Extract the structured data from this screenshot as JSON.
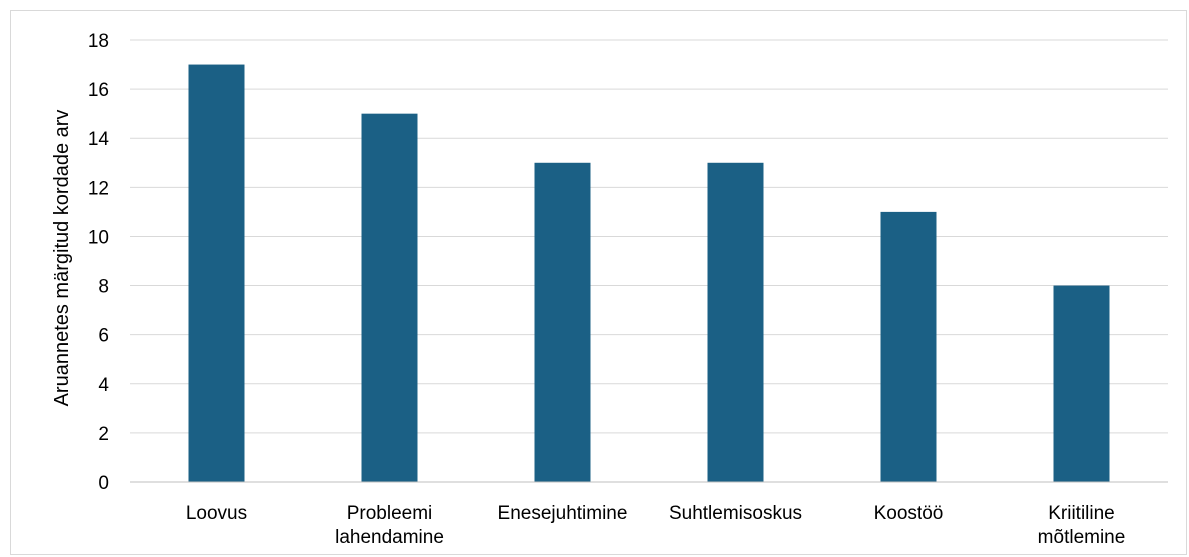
{
  "chart_data": {
    "type": "bar",
    "title": "",
    "xlabel": "",
    "ylabel": "Aruannetes märgitud kordade arv",
    "categories": [
      [
        "Loovus"
      ],
      [
        "Probleemi",
        "lahendamine"
      ],
      [
        "Enesejuhtimine"
      ],
      [
        "Suhtlemisoskus"
      ],
      [
        "Koostöö"
      ],
      [
        "Kriitiline",
        "mõtlemine"
      ]
    ],
    "values": [
      17,
      15,
      13,
      13,
      11,
      8
    ],
    "ylim": [
      0,
      18
    ],
    "yticks": [
      0,
      2,
      4,
      6,
      8,
      10,
      12,
      14,
      16,
      18
    ],
    "grid": true,
    "legend": "none",
    "colors": {
      "bar": "#1b6085",
      "grid": "#d9d9d9",
      "axis": "#bfbfbf"
    }
  }
}
